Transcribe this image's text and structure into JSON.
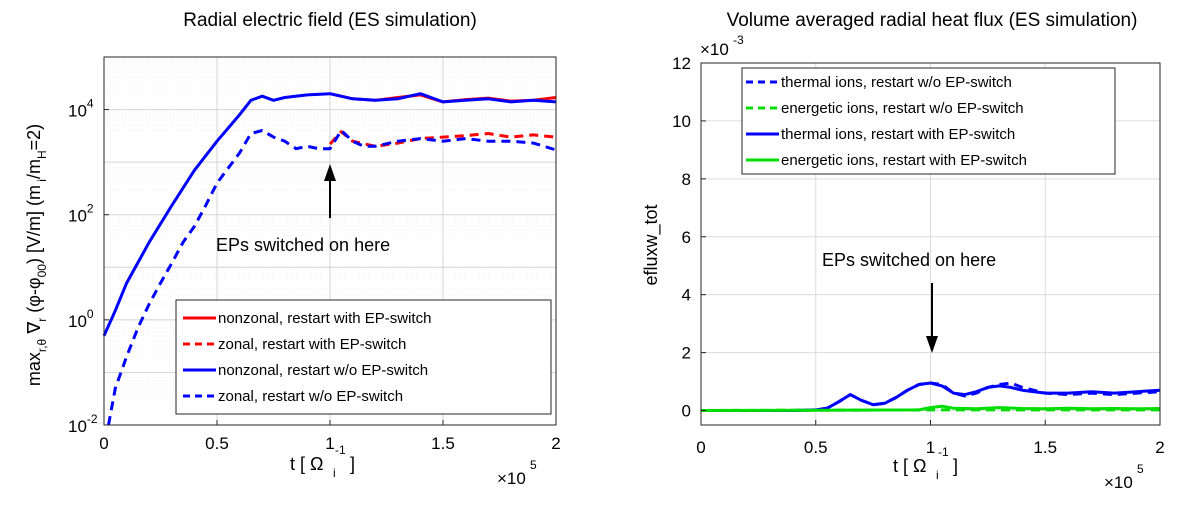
{
  "chart_data": [
    {
      "type": "line",
      "title": "Radial electric field (ES simulation)",
      "xlabel": "t [ Ω_i^-1 ]",
      "ylabel": "max_{r,θ} ∇_r (φ-φ_00) [V/m] (m_i/m_H=2)",
      "x_multiplier": "×10^5",
      "y_scale": "log",
      "xlim": [
        0,
        2
      ],
      "ylim": [
        0.01,
        100000
      ],
      "x_ticks": [
        "0",
        "0.5",
        "1",
        "1.5",
        "2"
      ],
      "y_tick_values": [
        0.01,
        1,
        100,
        10000
      ],
      "y_tick_labels": [
        {
          "base": "10",
          "exp": "-2"
        },
        {
          "base": "10",
          "exp": "0"
        },
        {
          "base": "10",
          "exp": "2"
        },
        {
          "base": "10",
          "exp": "4"
        }
      ],
      "grid": true,
      "legend_position": "bottom-right",
      "annotation": {
        "text": "EPs switched on here",
        "x": 1.0,
        "y": 1500
      },
      "series": [
        {
          "name": "nonzonal, restart with EP-switch",
          "color": "#ff0000",
          "style": "solid",
          "x": [
            1.0,
            1.1,
            1.2,
            1.3,
            1.4,
            1.5,
            1.6,
            1.7,
            1.8,
            1.9,
            2.0
          ],
          "y": [
            20000,
            16000,
            15000,
            17000,
            19000,
            14000,
            15500,
            16500,
            14500,
            15000,
            17000
          ]
        },
        {
          "name": "zonal, restart with EP-switch",
          "color": "#ff0000",
          "style": "dashed",
          "x": [
            1.0,
            1.05,
            1.1,
            1.2,
            1.3,
            1.4,
            1.5,
            1.6,
            1.7,
            1.8,
            1.9,
            2.0
          ],
          "y": [
            2200,
            3800,
            2500,
            2000,
            2300,
            2800,
            3000,
            3200,
            3500,
            3000,
            3300,
            3000
          ]
        },
        {
          "name": "nonzonal, restart w/o EP-switch",
          "color": "#0000ff",
          "style": "solid",
          "x": [
            0,
            0.05,
            0.1,
            0.2,
            0.3,
            0.4,
            0.5,
            0.6,
            0.65,
            0.7,
            0.75,
            0.8,
            0.9,
            1.0,
            1.1,
            1.2,
            1.3,
            1.4,
            1.5,
            1.6,
            1.7,
            1.8,
            1.9,
            2.0
          ],
          "y": [
            0.5,
            1.5,
            5,
            30,
            150,
            700,
            2500,
            8000,
            15000,
            18000,
            15000,
            17000,
            19000,
            20000,
            16000,
            15000,
            16000,
            20000,
            14000,
            15000,
            16000,
            14000,
            15000,
            14000
          ]
        },
        {
          "name": "zonal, restart w/o EP-switch",
          "color": "#0000ff",
          "style": "dashed",
          "x": [
            0.02,
            0.05,
            0.1,
            0.15,
            0.2,
            0.25,
            0.3,
            0.35,
            0.4,
            0.45,
            0.5,
            0.6,
            0.65,
            0.7,
            0.75,
            0.8,
            0.85,
            0.9,
            0.95,
            1.0,
            1.05,
            1.1,
            1.15,
            1.2,
            1.3,
            1.4,
            1.5,
            1.6,
            1.7,
            1.8,
            1.9,
            2.0
          ],
          "y": [
            0.01,
            0.05,
            0.2,
            0.7,
            2,
            5,
            12,
            30,
            60,
            150,
            400,
            1500,
            3500,
            4000,
            3000,
            2500,
            1800,
            2000,
            1800,
            1800,
            4000,
            2500,
            2000,
            2000,
            2500,
            2800,
            2500,
            2800,
            2500,
            2500,
            2300,
            1700
          ]
        }
      ]
    },
    {
      "type": "line",
      "title": "Volume averaged radial heat flux (ES simulation)",
      "xlabel": "t [ Ω_i^-1 ]",
      "ylabel": "efluxw_tot",
      "x_multiplier": "×10^5",
      "y_multiplier": "×10^-3",
      "xlim": [
        0,
        2
      ],
      "ylim": [
        -0.5,
        12
      ],
      "x_ticks": [
        "0",
        "0.5",
        "1",
        "1.5",
        "2"
      ],
      "y_ticks": [
        "0",
        "2",
        "4",
        "6",
        "8",
        "10",
        "12"
      ],
      "grid": true,
      "legend_position": "top",
      "annotation": {
        "text": "EPs switched on here",
        "x": 1.0,
        "y": 2.0
      },
      "series": [
        {
          "name": "thermal ions, restart w/o EP-switch",
          "color": "#0000ff",
          "style": "dashed",
          "x": [
            0,
            0.4,
            0.5,
            0.55,
            0.6,
            0.65,
            0.7,
            0.75,
            0.8,
            0.85,
            0.9,
            0.95,
            1.0,
            1.05,
            1.1,
            1.15,
            1.2,
            1.25,
            1.3,
            1.35,
            1.4,
            1.5,
            1.6,
            1.7,
            1.8,
            1.9,
            2.0
          ],
          "y": [
            0,
            0,
            0.02,
            0.08,
            0.3,
            0.55,
            0.35,
            0.2,
            0.25,
            0.45,
            0.7,
            0.9,
            0.95,
            0.9,
            0.6,
            0.5,
            0.6,
            0.8,
            0.9,
            0.95,
            0.8,
            0.6,
            0.55,
            0.6,
            0.55,
            0.6,
            0.65
          ]
        },
        {
          "name": "energetic ions, restart w/o EP-switch",
          "color": "#00dd00",
          "style": "dashed",
          "x": [
            0,
            0.5,
            1.0,
            1.5,
            2.0
          ],
          "y": [
            0,
            0.01,
            0.02,
            0.02,
            0.02
          ]
        },
        {
          "name": "thermal ions, restart with EP-switch",
          "color": "#0000ff",
          "style": "solid",
          "x": [
            0,
            0.4,
            0.5,
            0.55,
            0.6,
            0.65,
            0.7,
            0.75,
            0.8,
            0.85,
            0.9,
            0.95,
            1.0,
            1.05,
            1.1,
            1.15,
            1.2,
            1.25,
            1.3,
            1.35,
            1.4,
            1.5,
            1.6,
            1.7,
            1.8,
            1.9,
            2.0
          ],
          "y": [
            0,
            0,
            0.02,
            0.08,
            0.3,
            0.55,
            0.35,
            0.2,
            0.25,
            0.45,
            0.7,
            0.9,
            0.95,
            0.85,
            0.6,
            0.55,
            0.65,
            0.8,
            0.85,
            0.8,
            0.7,
            0.6,
            0.6,
            0.65,
            0.6,
            0.65,
            0.7
          ]
        },
        {
          "name": "energetic ions, restart with EP-switch",
          "color": "#00dd00",
          "style": "solid",
          "x": [
            0,
            0.5,
            0.95,
            1.0,
            1.05,
            1.1,
            1.2,
            1.3,
            1.4,
            1.5,
            1.6,
            1.7,
            1.8,
            1.9,
            2.0
          ],
          "y": [
            0,
            0.01,
            0.02,
            0.1,
            0.15,
            0.08,
            0.06,
            0.1,
            0.07,
            0.06,
            0.08,
            0.06,
            0.07,
            0.06,
            0.07
          ]
        }
      ]
    }
  ]
}
